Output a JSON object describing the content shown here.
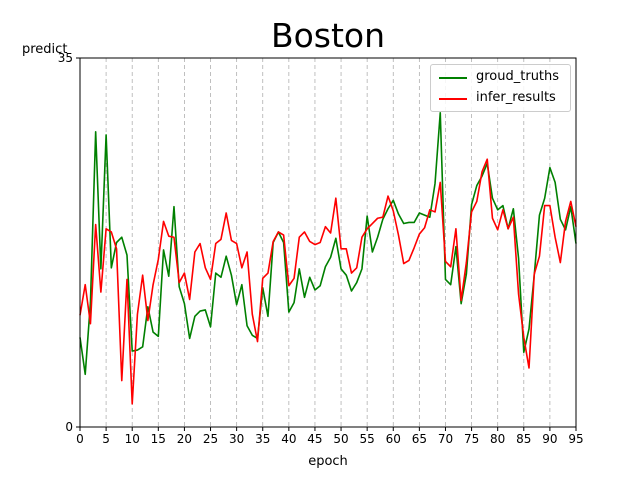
{
  "chart_data": {
    "type": "line",
    "title": "Boston",
    "xlabel": "epoch",
    "ylabel": "predict",
    "xlim": [
      0,
      95
    ],
    "ylim": [
      0,
      35
    ],
    "xticks": [
      "0",
      "5",
      "10",
      "15",
      "20",
      "25",
      "30",
      "35",
      "40",
      "45",
      "50",
      "55",
      "60",
      "65",
      "70",
      "75",
      "80",
      "85",
      "90",
      "95"
    ],
    "yticks": [
      "0",
      "35"
    ],
    "grid": true,
    "legend_position": "top-right",
    "series": [
      {
        "name": "groud_truths",
        "color": "#008000",
        "x": [
          0,
          1,
          2,
          3,
          4,
          5,
          6,
          7,
          8,
          9,
          10,
          11,
          12,
          13,
          14,
          15,
          16,
          17,
          18,
          19,
          20,
          21,
          22,
          23,
          24,
          25,
          26,
          27,
          28,
          29,
          30,
          31,
          32,
          33,
          34,
          35,
          36,
          37,
          38,
          39,
          40,
          41,
          42,
          43,
          44,
          45,
          46,
          47,
          48,
          49,
          50,
          51,
          52,
          53,
          54,
          55,
          56,
          57,
          58,
          59,
          60,
          61,
          62,
          63,
          64,
          65,
          66,
          67,
          68,
          69,
          70,
          71,
          72,
          73,
          74,
          75,
          76,
          77,
          78,
          79,
          80,
          81,
          82,
          83,
          84,
          85,
          86,
          87,
          88,
          89,
          90,
          91,
          92,
          93,
          94,
          95
        ],
        "values": [
          8.5,
          5.0,
          11.8,
          28.0,
          15.0,
          27.7,
          15.1,
          17.5,
          18.0,
          16.3,
          7.2,
          7.3,
          7.6,
          11.4,
          9.0,
          8.6,
          16.8,
          14.3,
          20.9,
          13.3,
          11.7,
          8.4,
          10.5,
          11.0,
          11.1,
          9.5,
          14.6,
          14.2,
          16.2,
          14.4,
          11.6,
          13.5,
          9.6,
          8.7,
          8.4,
          13.2,
          10.5,
          17.5,
          18.5,
          17.5,
          10.9,
          11.8,
          15.0,
          12.3,
          14.2,
          13.0,
          13.4,
          15.2,
          16.1,
          17.9,
          15.0,
          14.4,
          12.9,
          13.7,
          15.0,
          20.0,
          16.6,
          18.0,
          19.7,
          20.7,
          21.5,
          20.2,
          19.3,
          19.4,
          19.4,
          20.3,
          20.1,
          19.9,
          23.1,
          29.8,
          14.0,
          13.5,
          17.1,
          11.7,
          14.5,
          21.1,
          22.9,
          23.8,
          25.0,
          21.7,
          20.6,
          21.0,
          18.8,
          20.7,
          16.0,
          7.1,
          9.3,
          14.4,
          20.1,
          21.7,
          24.6,
          23.2,
          19.7,
          18.7,
          20.9,
          17.4
        ]
      },
      {
        "name": "infer_results",
        "color": "#ff0000",
        "x": [
          0,
          1,
          2,
          3,
          4,
          5,
          6,
          7,
          8,
          9,
          10,
          11,
          12,
          13,
          14,
          15,
          16,
          17,
          18,
          19,
          20,
          21,
          22,
          23,
          24,
          25,
          26,
          27,
          28,
          29,
          30,
          31,
          32,
          33,
          34,
          35,
          36,
          37,
          38,
          39,
          40,
          41,
          42,
          43,
          44,
          45,
          46,
          47,
          48,
          49,
          50,
          51,
          52,
          53,
          54,
          55,
          56,
          57,
          58,
          59,
          60,
          61,
          62,
          63,
          64,
          65,
          66,
          67,
          68,
          69,
          70,
          71,
          72,
          73,
          74,
          75,
          76,
          77,
          78,
          79,
          80,
          81,
          82,
          83,
          84,
          85,
          86,
          87,
          88,
          89,
          90,
          91,
          92,
          93,
          94,
          95
        ],
        "values": [
          10.6,
          13.5,
          9.8,
          19.2,
          12.8,
          18.8,
          18.5,
          16.9,
          4.4,
          14.0,
          2.2,
          10.7,
          14.4,
          10.1,
          13.5,
          15.9,
          19.5,
          18.1,
          18.0,
          13.7,
          14.6,
          12.1,
          16.6,
          17.4,
          15.1,
          14.0,
          17.4,
          17.8,
          20.3,
          17.7,
          17.4,
          15.1,
          16.6,
          10.7,
          8.1,
          14.1,
          14.6,
          17.6,
          18.5,
          18.2,
          13.4,
          14.1,
          18.0,
          18.5,
          17.6,
          17.3,
          17.5,
          19.0,
          18.4,
          21.7,
          16.9,
          16.9,
          14.6,
          15.1,
          18.0,
          18.8,
          19.3,
          19.8,
          19.9,
          21.9,
          20.5,
          18.2,
          15.5,
          15.8,
          17.0,
          18.3,
          18.9,
          20.6,
          20.4,
          23.2,
          15.7,
          15.2,
          18.8,
          12.0,
          15.6,
          20.4,
          21.4,
          24.2,
          25.4,
          19.8,
          18.7,
          20.6,
          18.8,
          19.9,
          12.6,
          8.5,
          5.6,
          14.5,
          16.2,
          21.0,
          21.0,
          18.0,
          15.6,
          19.5,
          21.4,
          19.0
        ]
      }
    ]
  }
}
